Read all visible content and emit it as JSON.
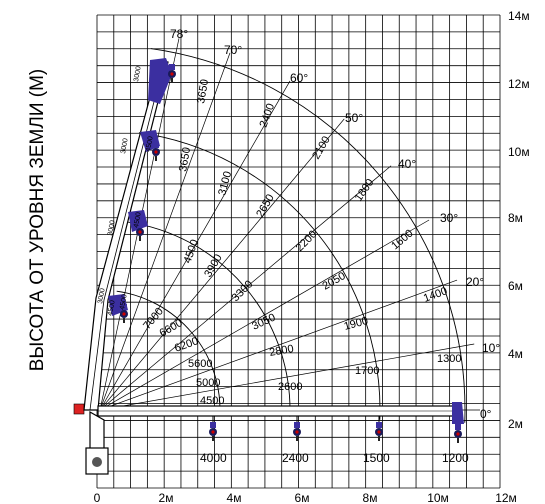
{
  "chart_data": {
    "type": "diagram",
    "ylabel": "ВЫСОТА ОТ УРОВНЯ ЗЕМЛИ (М)",
    "x_ticks": [
      "0",
      "2м",
      "4м",
      "6м",
      "8м",
      "10м",
      "12м"
    ],
    "y_ticks": [
      "2м",
      "4м",
      "6м",
      "8м",
      "10м",
      "12м",
      "14м"
    ],
    "angles": [
      "78°",
      "70°",
      "60°",
      "50°",
      "40°",
      "30°",
      "20°",
      "10°",
      "0°"
    ],
    "loads": [
      "4500",
      "5000",
      "5600",
      "6200",
      "6600",
      "7000",
      "2600",
      "2800",
      "3050",
      "3300",
      "3900",
      "4500",
      "1700",
      "1900",
      "2050",
      "2200",
      "2650",
      "3100",
      "1300",
      "1400",
      "1600",
      "1800",
      "2100",
      "2400",
      "3650",
      "3650"
    ],
    "bottom_loads": [
      "4000",
      "2400",
      "1500",
      "1200"
    ],
    "boom_labels": [
      "3000",
      "4500",
      "3000",
      "4500",
      "3000",
      "4500",
      "3000",
      "4500"
    ]
  }
}
